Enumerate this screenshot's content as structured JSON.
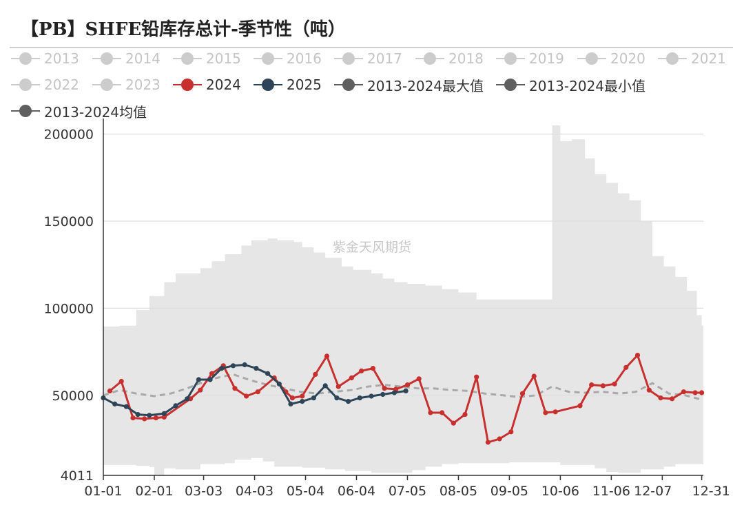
{
  "title": "【PB】SHFE铅库存总计-季节性（吨）",
  "legend": [
    {
      "label": "2013",
      "color": "#cccccc",
      "active": false
    },
    {
      "label": "2014",
      "color": "#cccccc",
      "active": false
    },
    {
      "label": "2015",
      "color": "#cccccc",
      "active": false
    },
    {
      "label": "2016",
      "color": "#cccccc",
      "active": false
    },
    {
      "label": "2017",
      "color": "#cccccc",
      "active": false
    },
    {
      "label": "2018",
      "color": "#cccccc",
      "active": false
    },
    {
      "label": "2019",
      "color": "#cccccc",
      "active": false
    },
    {
      "label": "2020",
      "color": "#cccccc",
      "active": false
    },
    {
      "label": "2021",
      "color": "#cccccc",
      "active": false
    },
    {
      "label": "2022",
      "color": "#cccccc",
      "active": false
    },
    {
      "label": "2023",
      "color": "#cccccc",
      "active": false
    },
    {
      "label": "2024",
      "color": "#c8302f",
      "active": true
    },
    {
      "label": "2025",
      "color": "#2e4457",
      "active": true
    },
    {
      "label": "2013-2024最大值",
      "color": "#5f5f5f",
      "active": true
    },
    {
      "label": "2013-2024最小值",
      "color": "#5f5f5f",
      "active": true
    },
    {
      "label": "2013-2024均值",
      "color": "#5f5f5f",
      "active": true
    }
  ],
  "watermark": "紫金天风期货",
  "colors": {
    "y2024": "#c8302f",
    "y2025": "#2e4457",
    "band": "#e6e6e6",
    "mean": "#a9a9a9"
  },
  "chart_data": {
    "type": "line",
    "x_axis_type": "day-of-year",
    "ylim": [
      4011,
      205000
    ],
    "yticks": [
      4011,
      50000,
      100000,
      150000,
      200000
    ],
    "xticks": [
      "01-01",
      "02-01",
      "03-03",
      "04-03",
      "05-04",
      "06-04",
      "07-05",
      "08-05",
      "09-05",
      "10-06",
      "11-06",
      "12-07",
      "12-31"
    ],
    "series": [
      {
        "name": "2013-2024最大值",
        "type": "area-upper",
        "points": [
          [
            "01-01",
            89500
          ],
          [
            "01-11",
            90000
          ],
          [
            "01-21",
            99000
          ],
          [
            "01-29",
            107000
          ],
          [
            "02-07",
            115000
          ],
          [
            "02-14",
            120000
          ],
          [
            "03-01",
            123000
          ],
          [
            "03-08",
            127000
          ],
          [
            "03-16",
            131000
          ],
          [
            "03-26",
            136000
          ],
          [
            "04-01",
            139000
          ],
          [
            "04-11",
            140000
          ],
          [
            "04-17",
            139000
          ],
          [
            "04-27",
            138000
          ],
          [
            "05-02",
            135000
          ],
          [
            "05-09",
            132000
          ],
          [
            "05-16",
            129000
          ],
          [
            "05-26",
            124000
          ],
          [
            "06-02",
            122000
          ],
          [
            "06-13",
            120000
          ],
          [
            "06-20",
            117000
          ],
          [
            "06-27",
            115000
          ],
          [
            "07-05",
            114000
          ],
          [
            "07-16",
            113000
          ],
          [
            "07-26",
            111000
          ],
          [
            "08-05",
            109000
          ],
          [
            "08-16",
            105000
          ],
          [
            "09-05",
            105000
          ],
          [
            "09-30",
            105000
          ],
          [
            "10-01",
            205000
          ],
          [
            "10-06",
            196000
          ],
          [
            "10-13",
            197000
          ],
          [
            "10-21",
            186000
          ],
          [
            "10-27",
            177000
          ],
          [
            "11-03",
            172000
          ],
          [
            "11-10",
            166000
          ],
          [
            "11-17",
            162000
          ],
          [
            "11-24",
            150000
          ],
          [
            "12-01",
            130000
          ],
          [
            "12-08",
            124000
          ],
          [
            "12-15",
            118000
          ],
          [
            "12-22",
            110000
          ],
          [
            "12-28",
            96000
          ],
          [
            "12-31",
            90000
          ]
        ]
      },
      {
        "name": "2013-2024最小值",
        "type": "area-lower",
        "points": [
          [
            "01-01",
            10000
          ],
          [
            "01-21",
            9500
          ],
          [
            "01-29",
            8800
          ],
          [
            "02-01",
            4011
          ],
          [
            "02-07",
            8000
          ],
          [
            "02-14",
            7500
          ],
          [
            "03-01",
            10500
          ],
          [
            "03-16",
            11000
          ],
          [
            "03-22",
            13000
          ],
          [
            "04-01",
            14000
          ],
          [
            "04-08",
            12000
          ],
          [
            "04-15",
            9000
          ],
          [
            "05-02",
            8500
          ],
          [
            "05-16",
            7500
          ],
          [
            "05-28",
            6500
          ],
          [
            "06-13",
            5500
          ],
          [
            "07-01",
            5500
          ],
          [
            "07-08",
            7000
          ],
          [
            "07-16",
            9000
          ],
          [
            "07-26",
            10500
          ],
          [
            "08-05",
            11000
          ],
          [
            "08-16",
            11000
          ],
          [
            "09-05",
            11500
          ],
          [
            "09-30",
            11500
          ],
          [
            "10-06",
            10000
          ],
          [
            "10-27",
            8000
          ],
          [
            "11-03",
            6000
          ],
          [
            "11-10",
            5500
          ],
          [
            "11-24",
            7500
          ],
          [
            "12-08",
            9000
          ],
          [
            "12-15",
            10500
          ],
          [
            "12-31",
            10500
          ]
        ]
      },
      {
        "name": "2013-2024均值",
        "type": "line-dashed",
        "points": [
          [
            "01-01",
            50000
          ],
          [
            "01-11",
            53000
          ],
          [
            "01-21",
            51000
          ],
          [
            "02-01",
            49500
          ],
          [
            "02-11",
            51000
          ],
          [
            "02-21",
            54000
          ],
          [
            "03-01",
            57000
          ],
          [
            "03-11",
            60000
          ],
          [
            "03-21",
            62000
          ],
          [
            "04-01",
            58500
          ],
          [
            "04-11",
            56000
          ],
          [
            "04-21",
            54000
          ],
          [
            "05-01",
            52000
          ],
          [
            "05-11",
            51000
          ],
          [
            "05-21",
            52000
          ],
          [
            "06-01",
            53000
          ],
          [
            "06-11",
            55000
          ],
          [
            "06-21",
            56000
          ],
          [
            "07-01",
            55000
          ],
          [
            "07-11",
            54000
          ],
          [
            "07-21",
            54000
          ],
          [
            "08-01",
            53000
          ],
          [
            "08-11",
            52500
          ],
          [
            "08-21",
            51000
          ],
          [
            "09-01",
            50000
          ],
          [
            "09-11",
            49000
          ],
          [
            "09-21",
            50000
          ],
          [
            "10-01",
            55000
          ],
          [
            "10-11",
            52000
          ],
          [
            "10-21",
            51500
          ],
          [
            "11-01",
            52000
          ],
          [
            "11-11",
            51000
          ],
          [
            "11-21",
            52000
          ],
          [
            "12-01",
            57000
          ],
          [
            "12-11",
            51000
          ],
          [
            "12-21",
            50000
          ],
          [
            "12-31",
            47500
          ]
        ]
      },
      {
        "name": "2024",
        "type": "line",
        "points": [
          [
            "01-05",
            52500
          ],
          [
            "01-12",
            58000
          ],
          [
            "01-19",
            37000
          ],
          [
            "01-26",
            36500
          ],
          [
            "02-02",
            37000
          ],
          [
            "02-07",
            37500
          ],
          [
            "02-23",
            48000
          ],
          [
            "03-01",
            53000
          ],
          [
            "03-08",
            62500
          ],
          [
            "03-15",
            67000
          ],
          [
            "03-22",
            54000
          ],
          [
            "03-29",
            49500
          ],
          [
            "04-05",
            52000
          ],
          [
            "04-15",
            60000
          ],
          [
            "04-22",
            52000
          ],
          [
            "04-26",
            48500
          ],
          [
            "05-02",
            49500
          ],
          [
            "05-10",
            62000
          ],
          [
            "05-17",
            72500
          ],
          [
            "05-24",
            55000
          ],
          [
            "06-01",
            60000
          ],
          [
            "06-07",
            64000
          ],
          [
            "06-14",
            65500
          ],
          [
            "06-21",
            54000
          ],
          [
            "06-28",
            53500
          ],
          [
            "07-05",
            56000
          ],
          [
            "07-12",
            59500
          ],
          [
            "07-19",
            40000
          ],
          [
            "07-26",
            40000
          ],
          [
            "08-02",
            34000
          ],
          [
            "08-09",
            39000
          ],
          [
            "08-16",
            60500
          ],
          [
            "08-23",
            23000
          ],
          [
            "08-30",
            25000
          ],
          [
            "09-06",
            29000
          ],
          [
            "09-13",
            51000
          ],
          [
            "09-20",
            61000
          ],
          [
            "09-27",
            40000
          ],
          [
            "10-03",
            40500
          ],
          [
            "10-18",
            44000
          ],
          [
            "10-25",
            56000
          ],
          [
            "11-01",
            55500
          ],
          [
            "11-08",
            56500
          ],
          [
            "11-15",
            66000
          ],
          [
            "11-22",
            73000
          ],
          [
            "11-29",
            53000
          ],
          [
            "12-06",
            48500
          ],
          [
            "12-13",
            48000
          ],
          [
            "12-20",
            52000
          ],
          [
            "12-27",
            51500
          ],
          [
            "12-31",
            51500
          ]
        ]
      },
      {
        "name": "2025",
        "type": "line",
        "points": [
          [
            "01-01",
            48500
          ],
          [
            "01-08",
            45000
          ],
          [
            "01-15",
            43500
          ],
          [
            "01-22",
            39000
          ],
          [
            "01-29",
            38500
          ],
          [
            "02-07",
            39500
          ],
          [
            "02-14",
            44000
          ],
          [
            "02-21",
            48000
          ],
          [
            "02-28",
            59000
          ],
          [
            "03-07",
            59000
          ],
          [
            "03-14",
            65500
          ],
          [
            "03-21",
            67000
          ],
          [
            "03-28",
            67500
          ],
          [
            "04-04",
            65500
          ],
          [
            "04-11",
            62500
          ],
          [
            "04-18",
            56500
          ],
          [
            "04-25",
            45000
          ],
          [
            "05-02",
            46500
          ],
          [
            "05-09",
            48500
          ],
          [
            "05-16",
            55500
          ],
          [
            "05-23",
            48500
          ],
          [
            "05-30",
            46500
          ],
          [
            "06-06",
            48500
          ],
          [
            "06-13",
            49500
          ],
          [
            "06-20",
            50500
          ],
          [
            "06-27",
            51500
          ],
          [
            "07-04",
            52500
          ]
        ]
      }
    ]
  }
}
